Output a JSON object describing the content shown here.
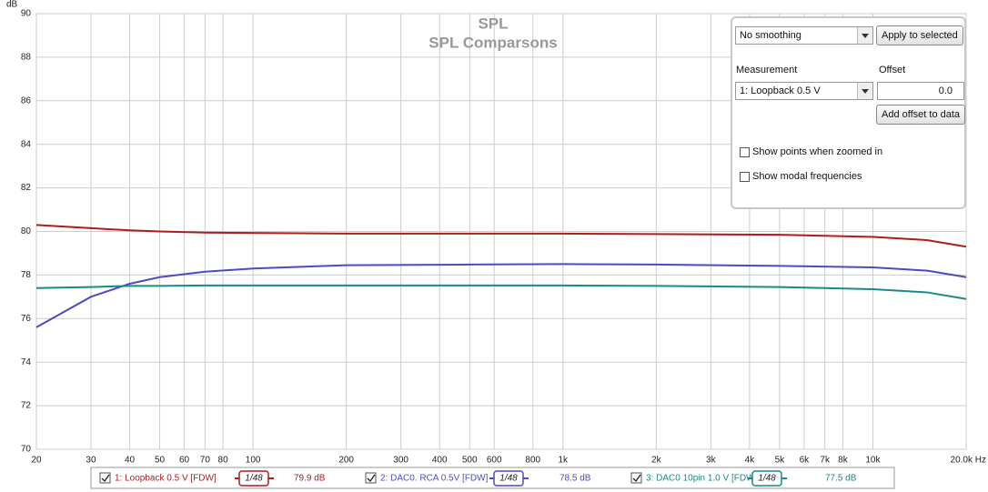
{
  "chart_data": {
    "type": "line",
    "title": "SPL",
    "subtitle": "SPL Comparsons",
    "ylabel": "dB",
    "x": [
      20,
      30,
      40,
      50,
      70,
      100,
      200,
      500,
      1000,
      2000,
      5000,
      10000,
      15000,
      20000
    ],
    "series": [
      {
        "name": "1: Loopback 0.5 V [FDW]",
        "color": "#b01c1c",
        "smoothing": "1/48",
        "legend_value": "79.9 dB",
        "values": [
          80.3,
          80.15,
          80.05,
          80.0,
          79.95,
          79.93,
          79.9,
          79.9,
          79.9,
          79.88,
          79.85,
          79.75,
          79.6,
          79.3
        ]
      },
      {
        "name": "2: DAC0. RCA 0.5V [FDW]",
        "color": "#4c4cc0",
        "smoothing": "1/48",
        "legend_value": "78.5 dB",
        "values": [
          75.6,
          77.0,
          77.6,
          77.9,
          78.15,
          78.3,
          78.45,
          78.48,
          78.5,
          78.48,
          78.42,
          78.35,
          78.2,
          77.9
        ]
      },
      {
        "name": "3: DAC0 10pin 1.0 V [FDW]",
        "color": "#1a8a8a",
        "smoothing": "1/48",
        "legend_value": "77.5 dB",
        "values": [
          77.4,
          77.45,
          77.5,
          77.5,
          77.52,
          77.52,
          77.52,
          77.52,
          77.52,
          77.5,
          77.45,
          77.35,
          77.2,
          76.9
        ]
      }
    ],
    "xscale": "log",
    "xlim": [
      20,
      20000
    ],
    "xticks": [
      20,
      30,
      40,
      50,
      60,
      70,
      80,
      100,
      200,
      300,
      400,
      500,
      600,
      800,
      {
        "value": 1000,
        "label": "1k"
      },
      {
        "value": 2000,
        "label": "2k"
      },
      {
        "value": 3000,
        "label": "3k"
      },
      {
        "value": 4000,
        "label": "4k"
      },
      {
        "value": 5000,
        "label": "5k"
      },
      {
        "value": 6000,
        "label": "6k"
      },
      {
        "value": 7000,
        "label": "7k"
      },
      {
        "value": 8000,
        "label": "8k"
      },
      {
        "value": 10000,
        "label": "10k"
      },
      {
        "value": 20000,
        "label": "20.0k Hz"
      }
    ],
    "ylim": [
      70,
      90
    ],
    "yticks": [
      70,
      72,
      74,
      76,
      78,
      80,
      82,
      84,
      86,
      88,
      90
    ],
    "grid": true
  },
  "controls": {
    "smoothing": "No smoothing",
    "apply_button": "Apply to selected",
    "measurement_label": "Measurement",
    "offset_label": "Offset",
    "measurement": "1: Loopback 0.5 V",
    "offset": "0.0",
    "offset_button": "Add offset to data",
    "checkbox_points": "Show points when zoomed in",
    "checkbox_modal": "Show modal frequencies"
  }
}
